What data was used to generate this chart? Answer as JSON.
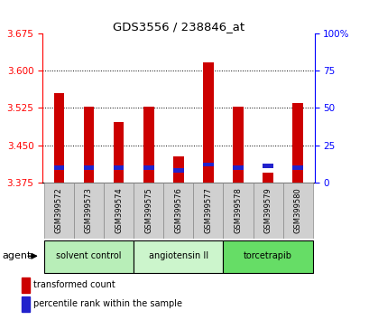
{
  "title": "GDS3556 / 238846_at",
  "samples": [
    "GSM399572",
    "GSM399573",
    "GSM399574",
    "GSM399575",
    "GSM399576",
    "GSM399577",
    "GSM399578",
    "GSM399579",
    "GSM399580"
  ],
  "transformed_count": [
    3.555,
    3.527,
    3.497,
    3.528,
    3.427,
    3.617,
    3.527,
    3.395,
    3.535
  ],
  "percentile_rank": [
    10,
    10,
    10,
    10,
    8,
    12,
    10,
    11,
    10
  ],
  "base_value": 3.375,
  "ylim_left": [
    3.375,
    3.675
  ],
  "ylim_right": [
    0,
    100
  ],
  "yticks_left": [
    3.375,
    3.45,
    3.525,
    3.6,
    3.675
  ],
  "yticks_right": [
    0,
    25,
    50,
    75,
    100
  ],
  "groups": [
    {
      "label": "solvent control",
      "start": 0,
      "end": 3,
      "color": "#b8eeb8"
    },
    {
      "label": "angiotensin II",
      "start": 3,
      "end": 6,
      "color": "#ccf5cc"
    },
    {
      "label": "torcetrapib",
      "start": 6,
      "end": 9,
      "color": "#66dd66"
    }
  ],
  "bar_color": "#cc0000",
  "blue_color": "#2222cc",
  "agent_label": "agent",
  "legend_red": "transformed count",
  "legend_blue": "percentile rank within the sample",
  "bar_width": 0.35
}
